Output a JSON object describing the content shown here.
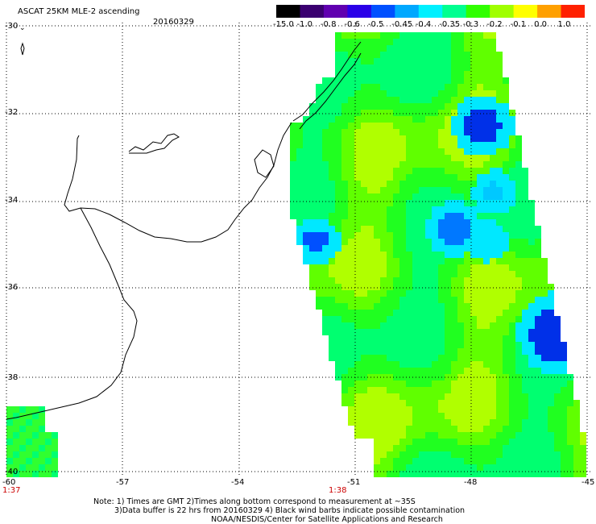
{
  "header": {
    "title": "ASCAT 25KM MLE-2 ascending",
    "date": "20160329"
  },
  "colorbar": {
    "labels": [
      "-15.0",
      "-1.0",
      "-0.8",
      "-0.6",
      "-0.5",
      "-0.45",
      "-0.4",
      "-0.35",
      "-0.3",
      "-0.2",
      "-0.1",
      "0.0",
      "1.0"
    ],
    "colors": [
      "#000000",
      "#3a0070",
      "#6000b0",
      "#2a00e8",
      "#0050ff",
      "#00a8ff",
      "#00f0ff",
      "#00ff90",
      "#30ff00",
      "#a0ff00",
      "#ffff00",
      "#ffa000",
      "#ff2000"
    ]
  },
  "axes": {
    "lat_labels": [
      "-30",
      "-32",
      "-34",
      "-36",
      "-38",
      "-40"
    ],
    "lon_labels": [
      "-60",
      "-57",
      "-54",
      "-51",
      "-48",
      "-45"
    ]
  },
  "times": {
    "left": "1:37",
    "center": "1:38"
  },
  "footer": {
    "line1": "Note: 1) Times are GMT 2)Times along bottom correspond to measurement at ~35S",
    "line2": "3)Data buffer is 22 hrs from 20160329 4) Black wind barbs indicate possible contamination",
    "line3": "NOAA/NESDIS/Center for Satellite Applications and Research"
  }
}
